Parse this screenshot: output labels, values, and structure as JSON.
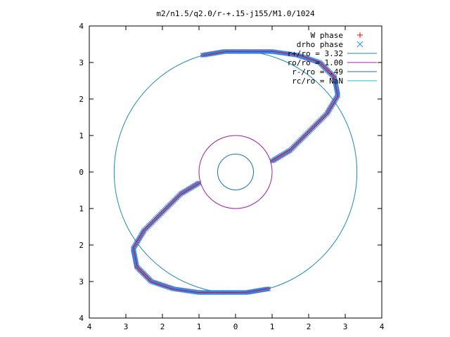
{
  "chart_data": {
    "type": "scatter",
    "title": "m2/n1.5/q2.0/r-+.15-j155/M1.0/1024",
    "xlabel": "",
    "ylabel": "",
    "xlim": [
      -4,
      4
    ],
    "ylim": [
      -4,
      4
    ],
    "grid": false,
    "legend_placement": "top-right",
    "x_tick_labels": [
      "4",
      "3",
      "2",
      "1",
      "0",
      "1",
      "2",
      "3",
      "4"
    ],
    "y_tick_labels": [
      "4",
      "3",
      "2",
      "1",
      "0",
      "1",
      "2",
      "3",
      "4"
    ],
    "series": [
      {
        "name": "W phase",
        "marker": "+",
        "color": "#ff0000",
        "kind": "points"
      },
      {
        "name": "drho phase",
        "marker": "x",
        "color": "#1e90ff",
        "kind": "points"
      },
      {
        "name": "r+/ro = 3.32",
        "color": "#1e8bb0",
        "kind": "circle",
        "radius": 3.32
      },
      {
        "name": "ro/ro = 1.00",
        "color": "#a020a0",
        "kind": "circle",
        "radius": 1.0
      },
      {
        "name": "r-/ro = .49",
        "color": "#1e6fb0",
        "kind": "circle",
        "radius": 0.49
      },
      {
        "name": "rc/ro = NaN",
        "color": "#20c0c0",
        "kind": "circle",
        "radius": null
      }
    ],
    "spiral_arms": [
      {
        "points": [
          [
            1.0,
            0.3
          ],
          [
            1.5,
            0.6
          ],
          [
            2.0,
            1.1
          ],
          [
            2.5,
            1.6
          ],
          [
            2.8,
            2.1
          ],
          [
            2.7,
            2.6
          ],
          [
            2.3,
            3.0
          ],
          [
            1.7,
            3.2
          ],
          [
            1.0,
            3.3
          ],
          [
            0.3,
            3.3
          ],
          [
            -0.3,
            3.3
          ],
          [
            -0.9,
            3.2
          ]
        ]
      },
      {
        "points": [
          [
            -1.0,
            -0.3
          ],
          [
            -1.5,
            -0.6
          ],
          [
            -2.0,
            -1.1
          ],
          [
            -2.5,
            -1.6
          ],
          [
            -2.8,
            -2.1
          ],
          [
            -2.7,
            -2.6
          ],
          [
            -2.3,
            -3.0
          ],
          [
            -1.7,
            -3.2
          ],
          [
            -1.0,
            -3.3
          ],
          [
            -0.3,
            -3.3
          ],
          [
            0.3,
            -3.3
          ],
          [
            0.9,
            -3.2
          ]
        ]
      }
    ]
  }
}
